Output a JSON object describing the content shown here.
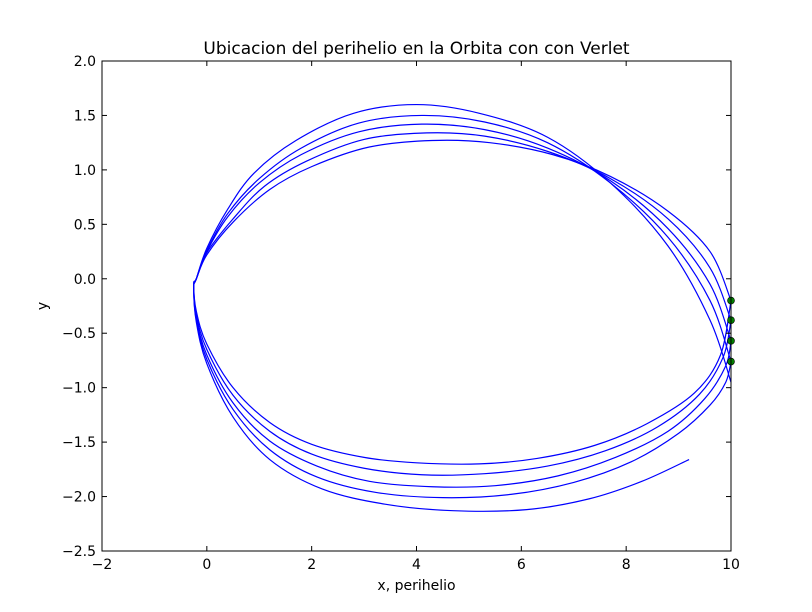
{
  "chart_data": {
    "type": "line",
    "title": "Ubicacion del perihelio en la Orbita con con Verlet",
    "xlabel": "x, perihelio",
    "ylabel": "y",
    "xlim": [
      -2,
      10
    ],
    "ylim": [
      -2.5,
      2.0
    ],
    "xticks": [
      -2,
      0,
      2,
      4,
      6,
      8,
      10
    ],
    "yticks": [
      -2.5,
      -2.0,
      -1.5,
      -1.0,
      -0.5,
      0.0,
      0.5,
      1.0,
      1.5,
      2.0
    ],
    "xtick_labels": [
      "−2",
      "0",
      "2",
      "4",
      "6",
      "8",
      "10"
    ],
    "ytick_labels": [
      "−2.5",
      "−2.0",
      "−1.5",
      "−1.0",
      "−0.5",
      "0.0",
      "0.5",
      "1.0",
      "1.5",
      "2.0"
    ],
    "grid": false,
    "legend": "none",
    "colors": {
      "orbit": "#0000ff",
      "perihelion": "#008000"
    },
    "series": [
      {
        "kind": "line",
        "color": "#0000ff",
        "orbits": [
          {
            "x": [
              10.0,
              9.6,
              8.8,
              7.7,
              6.6,
              5.4,
              4.3,
              3.1,
              2.0,
              1.2,
              0.5,
              0.0,
              -0.2,
              -0.25,
              -0.2,
              0.0,
              0.5,
              1.2,
              2.0,
              3.0,
              4.0,
              5.2,
              6.3,
              7.4,
              8.4,
              9.3,
              9.8,
              10.0
            ],
            "y": [
              -0.2,
              0.25,
              0.62,
              0.94,
              1.14,
              1.25,
              1.27,
              1.21,
              1.03,
              0.82,
              0.52,
              0.22,
              0.0,
              -0.05,
              -0.3,
              -0.6,
              -1.0,
              -1.32,
              -1.52,
              -1.64,
              -1.69,
              -1.7,
              -1.65,
              -1.53,
              -1.33,
              -1.05,
              -0.7,
              -0.2
            ]
          },
          {
            "x": [
              10.0,
              9.6,
              8.8,
              7.7,
              6.5,
              5.3,
              4.2,
              3.0,
              1.9,
              1.1,
              0.5,
              0.0,
              -0.2,
              -0.25,
              -0.2,
              0.0,
              0.5,
              1.2,
              2.0,
              3.0,
              4.1,
              5.3,
              6.5,
              7.6,
              8.6,
              9.4,
              9.85,
              10.0
            ],
            "y": [
              -0.38,
              0.1,
              0.55,
              0.92,
              1.17,
              1.31,
              1.34,
              1.28,
              1.08,
              0.85,
              0.55,
              0.24,
              0.0,
              -0.06,
              -0.33,
              -0.65,
              -1.07,
              -1.4,
              -1.61,
              -1.74,
              -1.8,
              -1.79,
              -1.72,
              -1.58,
              -1.36,
              -1.06,
              -0.72,
              -0.38
            ]
          },
          {
            "x": [
              10.0,
              9.6,
              8.8,
              7.7,
              6.5,
              5.3,
              4.1,
              2.9,
              1.8,
              1.0,
              0.4,
              0.0,
              -0.2,
              -0.25,
              -0.2,
              0.0,
              0.5,
              1.2,
              2.1,
              3.1,
              4.3,
              5.5,
              6.7,
              7.8,
              8.8,
              9.5,
              9.9,
              10.0
            ],
            "y": [
              -0.57,
              -0.05,
              0.46,
              0.9,
              1.2,
              1.37,
              1.42,
              1.35,
              1.14,
              0.88,
              0.57,
              0.25,
              0.0,
              -0.07,
              -0.36,
              -0.7,
              -1.14,
              -1.49,
              -1.72,
              -1.86,
              -1.91,
              -1.9,
              -1.81,
              -1.64,
              -1.4,
              -1.1,
              -0.8,
              -0.57
            ]
          },
          {
            "x": [
              10.0,
              9.6,
              8.8,
              7.7,
              6.5,
              5.3,
              4.1,
              2.9,
              1.8,
              1.0,
              0.4,
              0.0,
              -0.2,
              -0.25,
              -0.2,
              0.0,
              0.5,
              1.2,
              2.1,
              3.2,
              4.5,
              5.8,
              7.0,
              8.1,
              9.0,
              9.6,
              9.9,
              10.0
            ],
            "y": [
              -0.76,
              -0.2,
              0.38,
              0.88,
              1.25,
              1.44,
              1.5,
              1.43,
              1.2,
              0.92,
              0.6,
              0.26,
              0.0,
              -0.08,
              -0.38,
              -0.74,
              -1.2,
              -1.57,
              -1.82,
              -1.96,
              -2.01,
              -1.98,
              -1.87,
              -1.68,
              -1.42,
              -1.16,
              -0.95,
              -0.76
            ]
          },
          {
            "x": [
              10.0,
              9.6,
              8.8,
              7.7,
              6.5,
              5.2,
              4.0,
              2.8,
              1.7,
              0.9,
              0.4,
              0.0,
              -0.2,
              -0.25,
              -0.2,
              0.0,
              0.5,
              1.2,
              2.2,
              3.4,
              4.7,
              6.1,
              7.3,
              8.3,
              9.2
            ],
            "y": [
              -0.95,
              -0.38,
              0.3,
              0.88,
              1.3,
              1.52,
              1.6,
              1.52,
              1.27,
              0.97,
              0.64,
              0.28,
              0.0,
              -0.09,
              -0.4,
              -0.78,
              -1.27,
              -1.66,
              -1.93,
              -2.07,
              -2.13,
              -2.12,
              -2.02,
              -1.86,
              -1.66
            ]
          }
        ]
      },
      {
        "kind": "scatter",
        "color": "#008000",
        "x": [
          10.0,
          10.0,
          10.0,
          10.0
        ],
        "y": [
          -0.2,
          -0.38,
          -0.57,
          -0.76
        ]
      }
    ]
  }
}
